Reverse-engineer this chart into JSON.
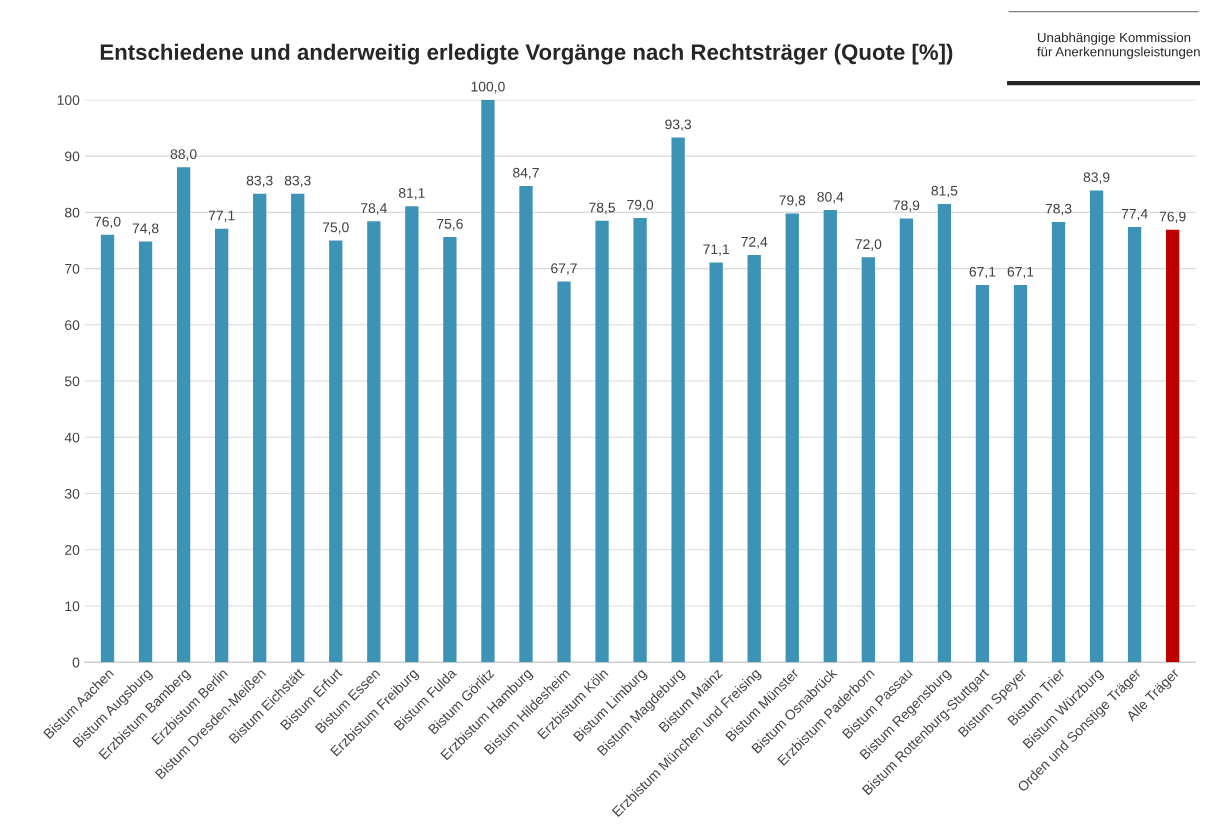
{
  "chart_data": {
    "type": "bar",
    "title": "Entschiedene und anderweitig erledigte Vorgänge nach Rechtsträger (Quote [%])",
    "annotations": [
      "Unabhängige Kommission\nfür Anerkennungsleistungen"
    ],
    "categories": [
      "Bistum Aachen",
      "Bistum Augsburg",
      "Erzbistum Bamberg",
      "Erzbistum Berlin",
      "Bistum Dresden-Meißen",
      "Bistum Eichstätt",
      "Bistum Erfurt",
      "Bistum Essen",
      "Erzbistum Freiburg",
      "Bistum Fulda",
      "Bistum Görlitz",
      "Erzbistum Hamburg",
      "Bistum Hildesheim",
      "Erzbistum Köln",
      "Bistum Limburg",
      "Bistum Magdeburg",
      "Bistum Mainz",
      "Erzbistum München und Freising",
      "Bistum Münster",
      "Bistum Osnabrück",
      "Erzbistum Paderborn",
      "Bistum Passau",
      "Bistum Regensburg",
      "Bistum Rottenburg-Stuttgart",
      "Bistum Speyer",
      "Bistum Trier",
      "Bistum Würzburg",
      "Orden und Sonstige Träger",
      "Alle Träger"
    ],
    "values": [
      76.0,
      74.8,
      88.0,
      77.1,
      83.3,
      83.3,
      75.0,
      78.4,
      81.1,
      75.6,
      100.0,
      84.7,
      67.7,
      78.5,
      79.0,
      93.3,
      71.1,
      72.4,
      79.8,
      80.4,
      72.0,
      78.9,
      81.5,
      67.1,
      67.1,
      78.3,
      83.9,
      77.4,
      76.9
    ],
    "value_labels": [
      "76,0",
      "74,8",
      "88,0",
      "77,1",
      "83,3",
      "83,3",
      "75,0",
      "78,4",
      "81,1",
      "75,6",
      "100,0",
      "84,7",
      "67,7",
      "78,5",
      "79,0",
      "93,3",
      "71,1",
      "72,4",
      "79,8",
      "80,4",
      "72,0",
      "78,9",
      "81,5",
      "67,1",
      "67,1",
      "78,3",
      "83,9",
      "77,4",
      "76,9"
    ],
    "colors": [
      "#3d93b5",
      "#3d93b5",
      "#3d93b5",
      "#3d93b5",
      "#3d93b5",
      "#3d93b5",
      "#3d93b5",
      "#3d93b5",
      "#3d93b5",
      "#3d93b5",
      "#3d93b5",
      "#3d93b5",
      "#3d93b5",
      "#3d93b5",
      "#3d93b5",
      "#3d93b5",
      "#3d93b5",
      "#3d93b5",
      "#3d93b5",
      "#3d93b5",
      "#3d93b5",
      "#3d93b5",
      "#3d93b5",
      "#3d93b5",
      "#3d93b5",
      "#3d93b5",
      "#3d93b5",
      "#3d93b5",
      "#c00000"
    ],
    "ylim": [
      0,
      100
    ],
    "yticks": [
      0,
      10,
      20,
      30,
      40,
      50,
      60,
      70,
      80,
      90,
      100
    ],
    "grid": "y",
    "legend": false
  }
}
